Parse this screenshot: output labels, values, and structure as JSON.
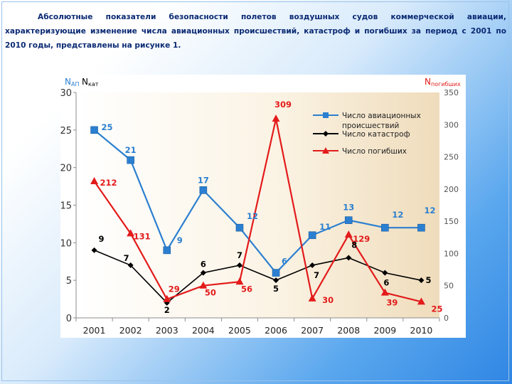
{
  "intro_text": "Абсолютные показатели безопасности полетов воздушных судов коммерческой авиации, характеризующие изменение числа авиационных происшествий, катастроф и погибших за период с 2001 по 2010 годы, представлены на рисунке 1.",
  "chart_data": {
    "type": "line",
    "title": "",
    "categories": [
      "2001",
      "2002",
      "2003",
      "2004",
      "2005",
      "2006",
      "2007",
      "2008",
      "2009",
      "2010"
    ],
    "y_left_label_a": "N",
    "y_left_label_a_sub": "АП",
    "y_left_label_b": "N",
    "y_left_label_b_sub": "кат",
    "y_right_label": "N",
    "y_right_label_sub": "погибших",
    "y_left_ticks": [
      "0",
      "5",
      "10",
      "15",
      "20",
      "25",
      "30"
    ],
    "y_left_lim": [
      0,
      30
    ],
    "y_right_ticks": [
      "0",
      "50",
      "100",
      "150",
      "200",
      "250",
      "300",
      "350"
    ],
    "y_right_lim": [
      0,
      350
    ],
    "series": [
      {
        "name": "Число авиационных происшествий",
        "legend_lines": [
          "Число авиационных",
          "происшествий"
        ],
        "axis": "left",
        "color": "#2b7fd0",
        "marker": "square",
        "values": [
          25,
          21,
          9,
          17,
          12,
          6,
          11,
          13,
          12,
          12
        ],
        "labels": [
          "25",
          "21",
          "9",
          "17",
          "12",
          "6",
          "11",
          "13",
          "12",
          "12"
        ]
      },
      {
        "name": "Число катастроф",
        "legend_lines": [
          "Число катастроф"
        ],
        "axis": "left",
        "color": "#000000",
        "marker": "diamond",
        "values": [
          9,
          7,
          2,
          6,
          7,
          5,
          7,
          8,
          6,
          5
        ],
        "labels": [
          "9",
          "7",
          "2",
          "6",
          "7",
          "5",
          "7",
          "8",
          "6",
          "5"
        ]
      },
      {
        "name": "Число погибших",
        "legend_lines": [
          "Число погибших"
        ],
        "axis": "right",
        "color": "#e31b1b",
        "marker": "triangle",
        "values": [
          212,
          131,
          29,
          50,
          56,
          309,
          30,
          129,
          39,
          25
        ],
        "labels": [
          "212",
          "131",
          "29",
          "50",
          "56",
          "309",
          "30",
          "129",
          "39",
          "25"
        ]
      }
    ],
    "grid": false,
    "legend_position": "top-right"
  }
}
